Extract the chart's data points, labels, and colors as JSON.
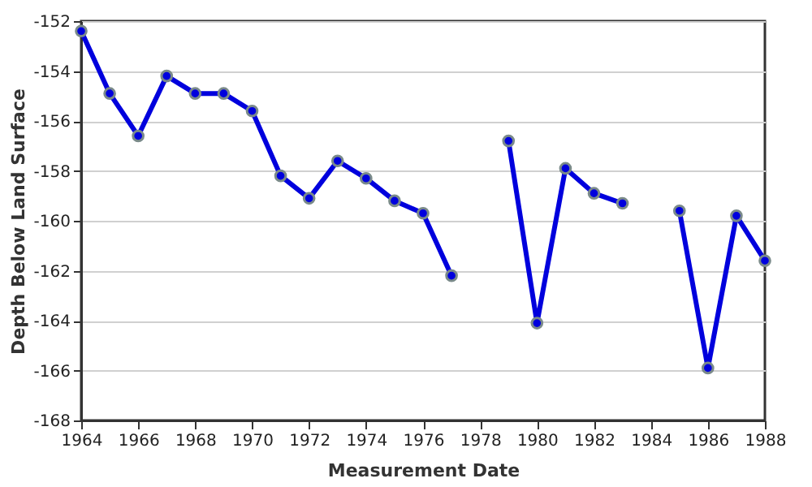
{
  "chart_data": {
    "type": "line",
    "xlabel": "Measurement Date",
    "ylabel": "Depth Below Land Surface",
    "x": [
      1964,
      1965,
      1966,
      1967,
      1968,
      1969,
      1970,
      1971,
      1972,
      1973,
      1974,
      1975,
      1976,
      1977,
      1978,
      1979,
      1980,
      1981,
      1982,
      1983,
      1984,
      1985,
      1986,
      1987,
      1988
    ],
    "series": [
      {
        "color": "#0000dd",
        "values": [
          -152.4,
          -154.9,
          -156.6,
          -154.2,
          -154.9,
          -154.9,
          -155.6,
          -158.2,
          -159.1,
          -157.6,
          -158.3,
          -159.2,
          -159.7,
          -162.2,
          null,
          -156.8,
          -164.1,
          -157.9,
          -158.9,
          -159.3,
          null,
          -159.6,
          -165.9,
          -159.8,
          -161.6
        ]
      }
    ],
    "xlim": [
      1964,
      1988
    ],
    "xticks": [
      1964,
      1966,
      1968,
      1970,
      1972,
      1974,
      1976,
      1978,
      1980,
      1982,
      1984,
      1986,
      1988
    ],
    "ylim": [
      -168,
      -152
    ],
    "yticks": [
      -168,
      -166,
      -164,
      -162,
      -160,
      -158,
      -156,
      -154,
      -152
    ],
    "grid": "y",
    "marker": "circle",
    "line_style": "solid"
  }
}
